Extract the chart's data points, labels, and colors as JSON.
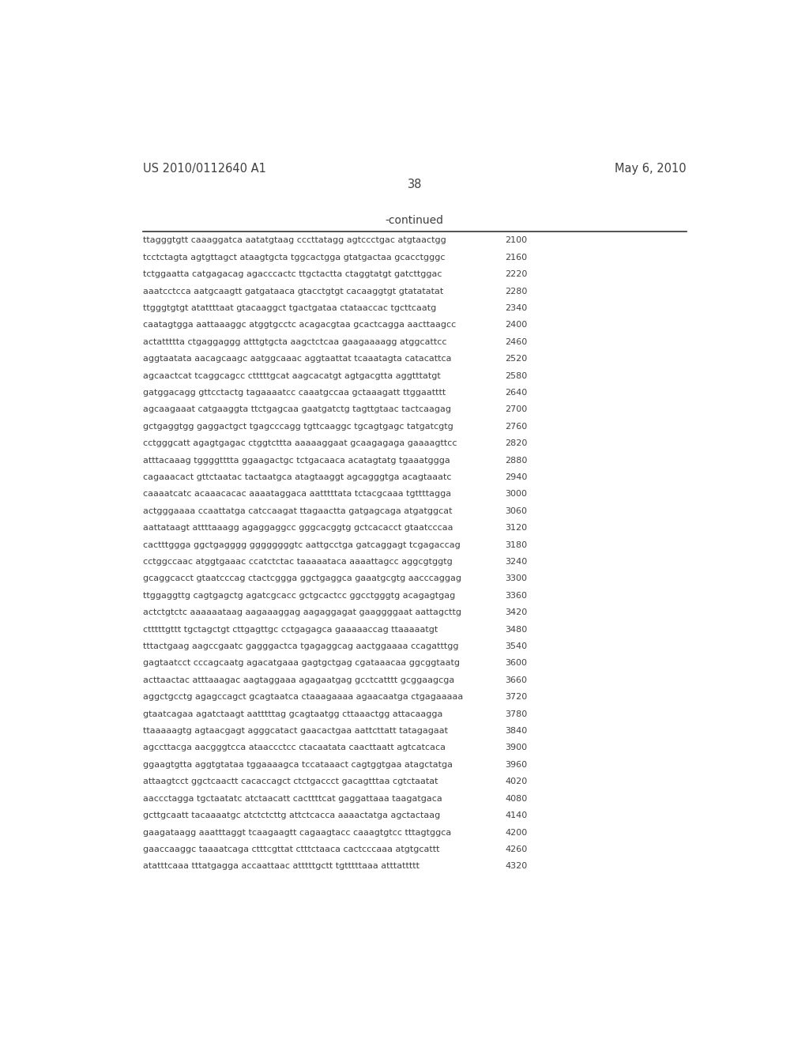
{
  "header_left": "US 2010/0112640 A1",
  "header_right": "May 6, 2010",
  "page_number": "38",
  "continued_label": "-continued",
  "background_color": "#ffffff",
  "text_color": "#404040",
  "sequence_lines": [
    [
      "ttagggtgtt caaaggatca aatatgtaag cccttatagg agtccctgac atgtaactgg",
      "2100"
    ],
    [
      "tcctctagta agtgttagct ataagtgcta tggcactgga gtatgactaa gcacctgggc",
      "2160"
    ],
    [
      "tctggaatta catgagacag agacccactc ttgctactta ctaggtatgt gatcttggac",
      "2220"
    ],
    [
      "aaatcctcca aatgcaagtt gatgataaca gtacctgtgt cacaaggtgt gtatatatat",
      "2280"
    ],
    [
      "ttgggtgtgt atattttaat gtacaaggct tgactgataa ctataaccac tgcttcaatg",
      "2340"
    ],
    [
      "caatagtgga aattaaaggc atggtgcctc acagacgtaa gcactcagga aacttaagcc",
      "2400"
    ],
    [
      "actattttta ctgaggaggg atttgtgcta aagctctcaa gaagaaaagg atggcattcc",
      "2460"
    ],
    [
      "aggtaatata aacagcaagc aatggcaaac aggtaattat tcaaatagta catacattca",
      "2520"
    ],
    [
      "agcaactcat tcaggcagcc ctttttgcat aagcacatgt agtgacgtta aggtttatgt",
      "2580"
    ],
    [
      "gatggacagg gttcctactg tagaaaatcc caaatgccaa gctaaagatt ttggaatttt",
      "2640"
    ],
    [
      "agcaagaaat catgaaggta ttctgagcaa gaatgatctg tagttgtaac tactcaagag",
      "2700"
    ],
    [
      "gctgaggtgg gaggactgct tgagcccagg tgttcaaggc tgcagtgagc tatgatcgtg",
      "2760"
    ],
    [
      "cctgggcatt agagtgagac ctggtcttta aaaaaggaat gcaagagaga gaaaagttcc",
      "2820"
    ],
    [
      "atttacaaag tggggtttta ggaagactgc tctgacaaca acatagtatg tgaaatggga",
      "2880"
    ],
    [
      "cagaaacact gttctaatac tactaatgca atagtaaggt agcagggtga acagtaaatc",
      "2940"
    ],
    [
      "caaaatcatc acaaacacac aaaataggaca aatttttata tctacgcaaa tgttttagga",
      "3000"
    ],
    [
      "actgggaaaa ccaattatga catccaagat ttagaactta gatgagcaga atgatggcat",
      "3060"
    ],
    [
      "aattataagt attttaaagg agaggaggcc gggcacggtg gctcacacct gtaatcccaa",
      "3120"
    ],
    [
      "cactttggga ggctgagggg ggggggggtc aattgcctga gatcaggagt tcgagaccag",
      "3180"
    ],
    [
      "cctggccaac atggtgaaac ccatctctac taaaaataca aaaattagcc aggcgtggtg",
      "3240"
    ],
    [
      "gcaggcacct gtaatcccag ctactcggga ggctgaggca gaaatgcgtg aacccaggag",
      "3300"
    ],
    [
      "ttggaggttg cagtgagctg agatcgcacc gctgcactcc ggcctgggtg acagagtgag",
      "3360"
    ],
    [
      "actctgtctc aaaaaataag aagaaaggag aagaggagat gaaggggaat aattagcttg",
      "3420"
    ],
    [
      "ctttttgttt tgctagctgt cttgagttgc cctgagagca gaaaaaccag ttaaaaatgt",
      "3480"
    ],
    [
      "tttactgaag aagccgaatc gagggactca tgagaggcag aactggaaaa ccagatttgg",
      "3540"
    ],
    [
      "gagtaatcct cccagcaatg agacatgaaa gagtgctgag cgataaacaa ggcggtaatg",
      "3600"
    ],
    [
      "acttaactac atttaaagac aagtaggaaa agagaatgag gcctcatttt gcggaagcga",
      "3660"
    ],
    [
      "aggctgcctg agagccagct gcagtaatca ctaaagaaaa agaacaatga ctgagaaaaa",
      "3720"
    ],
    [
      "gtaatcagaa agatctaagt aatttttag gcagtaatgg cttaaactgg attacaagga",
      "3780"
    ],
    [
      "ttaaaaagtg agtaacgagt agggcatact gaacactgaa aattcttatt tatagagaat",
      "3840"
    ],
    [
      "agccttacga aacgggtcca ataaccctcc ctacaatata caacttaatt agtcatcaca",
      "3900"
    ],
    [
      "ggaagtgtta aggtgtataa tggaaaagca tccataaact cagtggtgaa atagctatga",
      "3960"
    ],
    [
      "attaagtcct ggctcaactt cacaccagct ctctgaccct gacagtttaa cgtctaatat",
      "4020"
    ],
    [
      "aaccctagga tgctaatatc atctaacatt cacttttcat gaggattaaa taagatgaca",
      "4080"
    ],
    [
      "gcttgcaatt tacaaaatgc atctctcttg attctcacca aaaactatga agctactaag",
      "4140"
    ],
    [
      "gaagataagg aaatttaggt tcaagaagtt cagaagtacc caaagtgtcc tttagtggca",
      "4200"
    ],
    [
      "gaaccaaggc taaaatcaga ctttcgttat ctttctaaca cactcccaaa atgtgcattt",
      "4260"
    ],
    [
      "atatttcaaa tttatgagga accaattaac atttttgctt tgtttttaaa atttattttt",
      "4320"
    ]
  ]
}
